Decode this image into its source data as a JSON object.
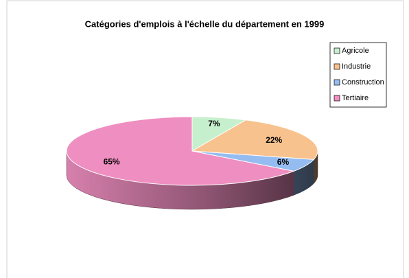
{
  "chart_data": {
    "type": "pie",
    "title": "Catégories d'emplois à l'échelle du département en 1999",
    "categories": [
      "Agricole",
      "Industrie",
      "Construction",
      "Tertiaire"
    ],
    "values": [
      7,
      22,
      6,
      65
    ],
    "value_labels": [
      "7%",
      "22%",
      "6%",
      "65%"
    ],
    "colors": [
      "#c6efce",
      "#f8c28e",
      "#95bcf0",
      "#ef8ec0"
    ],
    "legend": "right",
    "three_d": true
  }
}
